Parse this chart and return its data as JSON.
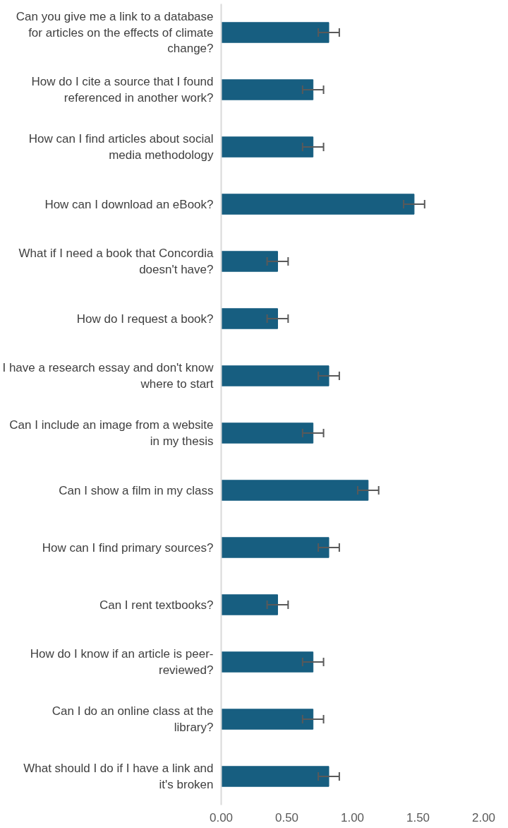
{
  "chart_data": {
    "type": "bar",
    "orientation": "horizontal",
    "categories": [
      "Can you give me a link to a database for articles on the effects of climate change?",
      "How do I cite a source that I found referenced in another work?",
      "How can I find articles about social media methodology",
      "How can I download an eBook?",
      "What if I need a book that Concordia doesn't have?",
      "How do I request a book?",
      "I have a research essay and don't know where to start",
      "Can I include an image from a website in my thesis",
      "Can I show a film in my class",
      "How can I find primary sources?",
      "Can I rent textbooks?",
      "How do I know if an article is peer-reviewed?",
      "Can I do an online class at the library?",
      "What should I do if I have a link and it's broken"
    ],
    "values": [
      0.82,
      0.7,
      0.7,
      1.47,
      0.43,
      0.43,
      0.82,
      0.7,
      1.12,
      0.82,
      0.43,
      0.7,
      0.7,
      0.82
    ],
    "errors": [
      0.08,
      0.08,
      0.08,
      0.08,
      0.08,
      0.08,
      0.08,
      0.08,
      0.08,
      0.08,
      0.08,
      0.08,
      0.08,
      0.08
    ],
    "color": "#175e80",
    "xlim": [
      0,
      2
    ],
    "xticks": [
      {
        "value": 0,
        "label": "0.00"
      },
      {
        "value": 0.5,
        "label": "0.50"
      },
      {
        "value": 1,
        "label": "1.00"
      },
      {
        "value": 1.5,
        "label": "1.50"
      },
      {
        "value": 2,
        "label": "2.00"
      }
    ],
    "grid": false
  }
}
